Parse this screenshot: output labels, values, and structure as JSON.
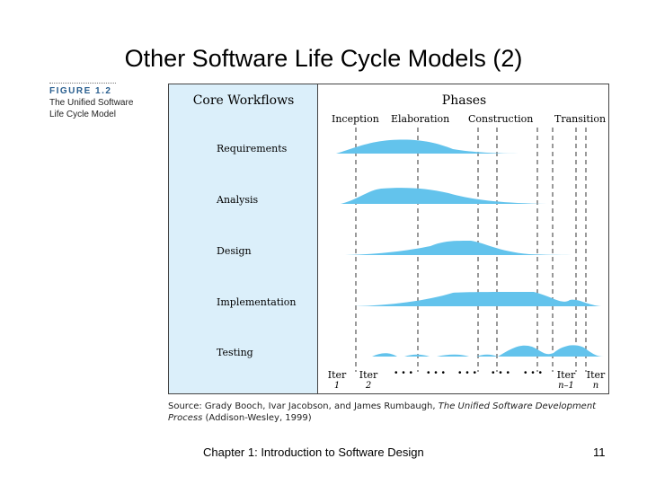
{
  "slide": {
    "title": "Other Software Life Cycle Models (2)",
    "footer": "Chapter 1: Introduction to Software Design",
    "page_number": "11"
  },
  "figure": {
    "label": "FIGURE 1.2",
    "title_line1": "The Unified Software",
    "title_line2": "Life Cycle Model",
    "core_workflows_heading": "Core Workflows",
    "phases_heading": "Phases",
    "phases": [
      "Inception",
      "Elaboration",
      "Construction",
      "Transition"
    ],
    "workflows": [
      "Requirements",
      "Analysis",
      "Design",
      "Implementation",
      "Testing"
    ],
    "iterations": [
      {
        "top": "Iter",
        "bottom": "1"
      },
      {
        "top": "Iter",
        "bottom": "2"
      },
      {
        "top": "Iter",
        "bottom": "n–1"
      },
      {
        "top": "Iter",
        "bottom": "n"
      }
    ],
    "ellipsis": "• • •",
    "fill_color": "#63c3ec",
    "panel_color": "#dbeffa",
    "source_prefix": "Source: Grady Booch, Ivar Jacobson, and James Rumbaugh, ",
    "source_book": "The Unified Software Development Process",
    "source_suffix": " (Addison-Wesley, 1999)"
  }
}
